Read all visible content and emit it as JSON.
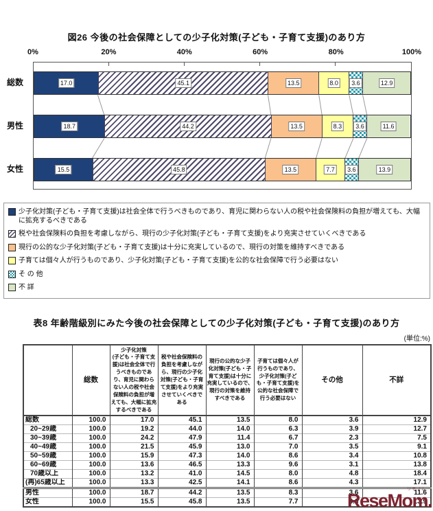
{
  "chart": {
    "title": "図26 今後の社会保障としての少子化対策(子ども・子育て支援)のあり方"
  },
  "chart_data": {
    "type": "bar",
    "orientation": "horizontal",
    "stacked": true,
    "unit": "%",
    "categories": [
      "総数",
      "男性",
      "女性"
    ],
    "series": [
      {
        "name": "少子化対策(子ども・子育て支援)は社会全体で行うべきものであり、育児に関わらない人の税や社会保険料の負担が増えても、大幅に拡充するべきである",
        "values": [
          17.0,
          18.7,
          15.5
        ],
        "color": "#1f4179",
        "pattern": "solid"
      },
      {
        "name": "税や社会保険料の負担を考慮しながら、現行の少子化対策(子ども・子育て支援)をより充実させていくべきである",
        "values": [
          45.1,
          44.2,
          45.8
        ],
        "color": "#4f4868",
        "pattern": "hatch"
      },
      {
        "name": "現行の公的な少子化対策(子ども・子育て支援)は十分に充実しているので、現行の対策を維持すべきである",
        "values": [
          13.5,
          13.5,
          13.5
        ],
        "color": "#fac18c",
        "pattern": "solid"
      },
      {
        "name": "子育ては個々人が行うものであり、少子化対策(子ども・子育て支援)を公的な社会保障で行う必要はない",
        "values": [
          8.0,
          8.3,
          7.7
        ],
        "color": "#ffff9d",
        "pattern": "solid"
      },
      {
        "name": "その他",
        "values": [
          3.6,
          3.6,
          3.6
        ],
        "color": "#2f9fae",
        "pattern": "checker"
      },
      {
        "name": "不詳",
        "values": [
          12.9,
          11.6,
          13.9
        ],
        "color": "#d8e6c6",
        "pattern": "solid"
      }
    ],
    "x_ticks": [
      "0%",
      "20%",
      "40%",
      "60%",
      "80%",
      "100%"
    ],
    "xlim": [
      0,
      100
    ],
    "grid": false,
    "legend_position": "bottom"
  },
  "legend": {
    "items": [
      {
        "series": 0,
        "label": "少子化対策(子ども・子育て支援)は社会全体で行うべきものであり、育児に関わらない人の税や社会保険料の負担が増えても、大幅に拡充するべきである"
      },
      {
        "series": 1,
        "label": "税や社会保険料の負担を考慮しながら、現行の少子化対策(子ども・子育て支援)をより充実させていくべきである"
      },
      {
        "series": 2,
        "label": "現行の公的な少子化対策(子ども・子育て支援)は十分に充実しているので、現行の対策を維持すべきである"
      },
      {
        "series": 3,
        "label": "子育ては個々人が行うものであり、少子化対策(子ども・子育て支援)を公的な社会保障で行う必要はない"
      },
      {
        "series": 4,
        "label": "そ の 他"
      },
      {
        "series": 5,
        "label": "不 詳"
      }
    ]
  },
  "table": {
    "title": "表8 年齢階級別にみた今後の社会保障としての少子化対策(子ども・子育て支援)のあり方",
    "unit_note": "(単位:%)",
    "row_label_header": "",
    "columns": [
      "総数",
      "少子化対策\n(子ども・子育て支援)は社会全体で行うべきものであり、育児に関わらない人の税や社会保険料の負担が増えても、大幅に拡充するべきである",
      "税や社会保険料の負担を考慮しながら、現行の少子化対策(子ども・子育て支援)をより充実させていくべきである",
      "現行の公的な少子化対策(子ども・子育て支援)は十分に充実しているので、現行の対策を維持すべきである",
      "子育ては個々人が行うものであり、少子化対策(子ども・子育て支援)を公的な社会保障で行う必要はない",
      "その他",
      "不詳"
    ],
    "rows": [
      {
        "label": "総数",
        "indent": false,
        "separator": false,
        "values": [
          "100.0",
          "17.0",
          "45.1",
          "13.5",
          "8.0",
          "3.6",
          "12.9"
        ]
      },
      {
        "label": "20~29歳",
        "indent": true,
        "separator": false,
        "values": [
          "100.0",
          "19.2",
          "44.0",
          "14.0",
          "6.3",
          "3.9",
          "12.7"
        ]
      },
      {
        "label": "30~39歳",
        "indent": true,
        "separator": false,
        "values": [
          "100.0",
          "24.2",
          "47.9",
          "11.4",
          "6.7",
          "2.3",
          "7.5"
        ]
      },
      {
        "label": "40~49歳",
        "indent": true,
        "separator": false,
        "values": [
          "100.0",
          "21.5",
          "45.9",
          "13.0",
          "7.0",
          "3.5",
          "9.1"
        ]
      },
      {
        "label": "50~59歳",
        "indent": true,
        "separator": false,
        "values": [
          "100.0",
          "15.9",
          "47.3",
          "14.0",
          "8.6",
          "3.4",
          "10.8"
        ]
      },
      {
        "label": "60~69歳",
        "indent": true,
        "separator": false,
        "values": [
          "100.0",
          "13.6",
          "46.5",
          "13.3",
          "9.6",
          "3.1",
          "13.8"
        ]
      },
      {
        "label": "70歳以上",
        "indent": true,
        "separator": false,
        "values": [
          "100.0",
          "13.2",
          "41.0",
          "14.5",
          "8.0",
          "4.8",
          "18.4"
        ]
      },
      {
        "label": "(再)65歳以上",
        "indent": false,
        "separator": false,
        "values": [
          "100.0",
          "13.3",
          "42.5",
          "14.1",
          "8.6",
          "4.3",
          "17.1"
        ]
      },
      {
        "label": "男性",
        "indent": false,
        "separator": true,
        "values": [
          "100.0",
          "18.7",
          "44.2",
          "13.5",
          "8.3",
          "3.6",
          "11.6"
        ]
      },
      {
        "label": "女性",
        "indent": false,
        "separator": false,
        "values": [
          "100.0",
          "15.5",
          "45.8",
          "13.5",
          "7.7",
          "3.6",
          "13.9"
        ]
      }
    ]
  },
  "watermark": {
    "text": "ReseMom.",
    "ruby": "リセマム",
    "color": "#7d2430"
  }
}
